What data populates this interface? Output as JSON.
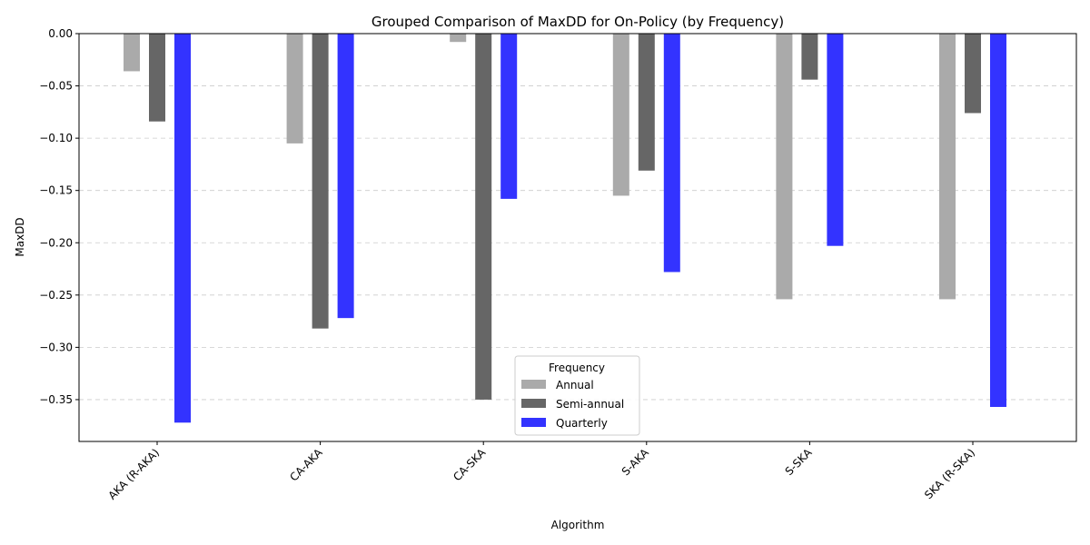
{
  "chart_data": {
    "type": "bar",
    "title": "Grouped Comparison of MaxDD for On-Policy (by Frequency)",
    "xlabel": "Algorithm",
    "ylabel": "MaxDD",
    "categories": [
      "AKA (R-AKA)",
      "CA-AKA",
      "CA-SKA",
      "S-AKA",
      "S-SKA",
      "SKA (R-SKA)"
    ],
    "series": [
      {
        "name": "Annual",
        "color": "#aaaaaa",
        "values": [
          -0.036,
          -0.105,
          -0.008,
          -0.155,
          -0.254,
          -0.254
        ]
      },
      {
        "name": "Semi-annual",
        "color": "#666666",
        "values": [
          -0.084,
          -0.282,
          -0.35,
          -0.131,
          -0.044,
          -0.076
        ]
      },
      {
        "name": "Quarterly",
        "color": "#3333ff",
        "values": [
          -0.372,
          -0.272,
          -0.158,
          -0.228,
          -0.203,
          -0.357
        ]
      }
    ],
    "ylim": [
      -0.39,
      0.0
    ],
    "yticks": [
      0.0,
      -0.05,
      -0.1,
      -0.15,
      -0.2,
      -0.25,
      -0.3,
      -0.35
    ],
    "ytick_labels": [
      "0.00",
      "−0.05",
      "−0.10",
      "−0.15",
      "−0.20",
      "−0.25",
      "−0.30",
      "−0.35"
    ],
    "grid": "y-dashed",
    "legend": {
      "title": "Frequency",
      "placement": "bottom-center"
    }
  }
}
